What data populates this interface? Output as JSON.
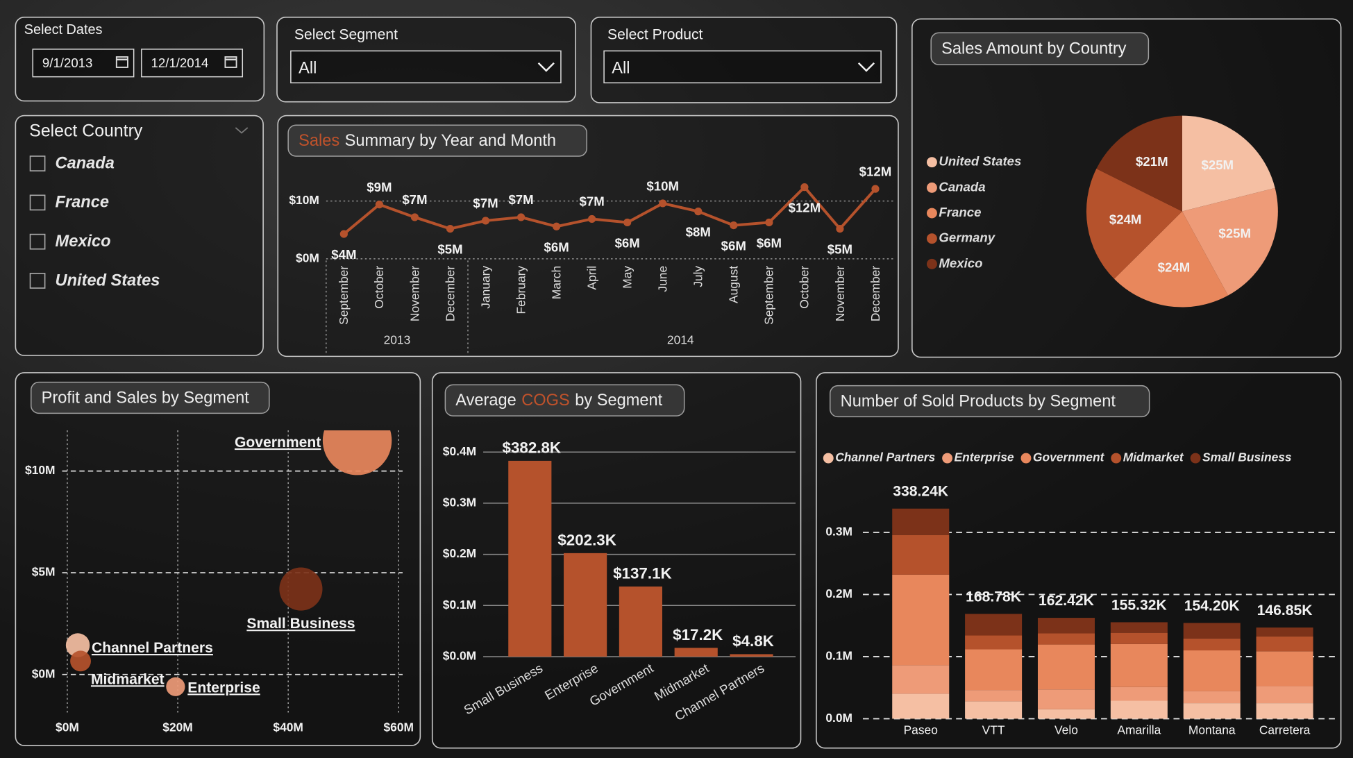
{
  "filters": {
    "dates": {
      "label": "Select Dates",
      "start": "9/1/2013",
      "end": "12/1/2014"
    },
    "segment": {
      "label": "Select Segment",
      "value": "All"
    },
    "product": {
      "label": "Select Product",
      "value": "All"
    },
    "country": {
      "label": "Select Country",
      "options": [
        "Canada",
        "France",
        "Mexico",
        "United States"
      ]
    }
  },
  "chart_data": [
    {
      "type": "line",
      "title": [
        "Sales",
        "Summary by Year and Month"
      ],
      "title_accent": 0,
      "categories": [
        "September",
        "October",
        "November",
        "December",
        "January",
        "February",
        "March",
        "April",
        "May",
        "June",
        "July",
        "August",
        "September",
        "October",
        "November",
        "December"
      ],
      "groups": [
        {
          "label": "2013",
          "span": 4
        },
        {
          "label": "2014",
          "span": 12
        }
      ],
      "values": [
        4.3,
        9.4,
        7.2,
        5.2,
        6.6,
        7.2,
        5.6,
        6.9,
        6.3,
        9.6,
        8.2,
        5.8,
        6.3,
        12.4,
        5.2,
        12.1
      ],
      "value_labels": [
        "$4M",
        "$9M",
        "$7M",
        "$5M",
        "$7M",
        "$7M",
        "$6M",
        "$7M",
        "$6M",
        "$10M",
        "$8M",
        "$6M",
        "$6M",
        "$12M",
        "$5M",
        "$12M"
      ],
      "ylim": [
        0,
        15
      ],
      "yticks": [
        {
          "value": 0,
          "label": "$0M"
        },
        {
          "value": 10,
          "label": "$10M"
        }
      ],
      "color": "#b5522c",
      "grid": true
    },
    {
      "type": "pie",
      "title": "Sales Amount by Country",
      "categories": [
        "United States",
        "Canada",
        "France",
        "Germany",
        "Mexico"
      ],
      "values": [
        25.03,
        24.89,
        24.35,
        23.51,
        20.95
      ],
      "value_labels": [
        "$25M",
        "$25M",
        "$24M",
        "$24M",
        "$21M"
      ],
      "colors": [
        "#f5bfa3",
        "#ee9b78",
        "#e8875c",
        "#b5522c",
        "#7c3219"
      ],
      "legend": "left"
    },
    {
      "type": "scatter",
      "title": "Profit and Sales by Segment",
      "categories": [
        "Government",
        "Small Business",
        "Channel Partners",
        "Midmarket",
        "Enterprise"
      ],
      "x": [
        52.5,
        42.3,
        1.9,
        2.4,
        19.6
      ],
      "values": [
        11.5,
        4.2,
        1.44,
        0.66,
        -0.6
      ],
      "sizes": [
        100,
        39,
        12,
        9,
        7.5
      ],
      "colors": [
        "#e8875c",
        "#7c3219",
        "#f5bfa3",
        "#b5522c",
        "#ee9b78"
      ],
      "xlim": [
        -2.5,
        61.5
      ],
      "ylim": [
        -1.2,
        12
      ],
      "xticks": [
        {
          "value": 0,
          "label": "$0M"
        },
        {
          "value": 20,
          "label": "$20M"
        },
        {
          "value": 40,
          "label": "$40M"
        },
        {
          "value": 60,
          "label": "$60M"
        }
      ],
      "yticks": [
        {
          "value": 0,
          "label": "$0M"
        },
        {
          "value": 5,
          "label": "$5M"
        },
        {
          "value": 10,
          "label": "$10M"
        }
      ],
      "grid": true
    },
    {
      "type": "bar",
      "title": [
        "Average",
        "COGS",
        "by Segment"
      ],
      "title_accent": 1,
      "categories": [
        "Small Business",
        "Enterprise",
        "Government",
        "Midmarket",
        "Channel Partners"
      ],
      "values": [
        0.3828,
        0.2023,
        0.1371,
        0.0172,
        0.0048
      ],
      "value_labels": [
        "$382.8K",
        "$202.3K",
        "$137.1K",
        "$17.2K",
        "$4.8K"
      ],
      "color": "#b5522c",
      "ylim": [
        0,
        0.415
      ],
      "yticks": [
        {
          "value": 0,
          "label": "$0.0M"
        },
        {
          "value": 0.1,
          "label": "$0.1M"
        },
        {
          "value": 0.2,
          "label": "$0.2M"
        },
        {
          "value": 0.3,
          "label": "$0.3M"
        },
        {
          "value": 0.4,
          "label": "$0.4M"
        }
      ],
      "grid": true
    },
    {
      "type": "stacked_bar",
      "title": "Number of Sold Products by Segment",
      "categories": [
        "Paseo",
        "VTT",
        "Velo",
        "Amarilla",
        "Montana",
        "Carretera"
      ],
      "series": [
        {
          "name": "Channel Partners",
          "color": "#f5bfa3",
          "values": [
            40300,
            28000,
            15200,
            29000,
            25000,
            25000
          ]
        },
        {
          "name": "Enterprise",
          "color": "#ee9b78",
          "values": [
            45800,
            18200,
            32000,
            22000,
            19500,
            27500
          ]
        },
        {
          "name": "Government",
          "color": "#e8875c",
          "values": [
            145800,
            65500,
            72200,
            69300,
            65500,
            56000
          ]
        },
        {
          "name": "Midmarket",
          "color": "#b5522c",
          "values": [
            63900,
            22300,
            18000,
            18000,
            19200,
            24000
          ]
        },
        {
          "name": "Small Business",
          "color": "#7c3219",
          "values": [
            42440,
            34780,
            25020,
            17020,
            25000,
            14350
          ]
        }
      ],
      "totals": [
        338240,
        168780,
        162420,
        155320,
        154200,
        146850
      ],
      "total_labels": [
        "338.24K",
        "168.78K",
        "162.42K",
        "155.32K",
        "154.20K",
        "146.85K"
      ],
      "ylim": [
        0,
        360000
      ],
      "yticks": [
        {
          "value": 0,
          "label": "0.0M"
        },
        {
          "value": 100000,
          "label": "0.1M"
        },
        {
          "value": 200000,
          "label": "0.2M"
        },
        {
          "value": 300000,
          "label": "0.3M"
        }
      ],
      "legend": "top",
      "grid": true
    }
  ]
}
